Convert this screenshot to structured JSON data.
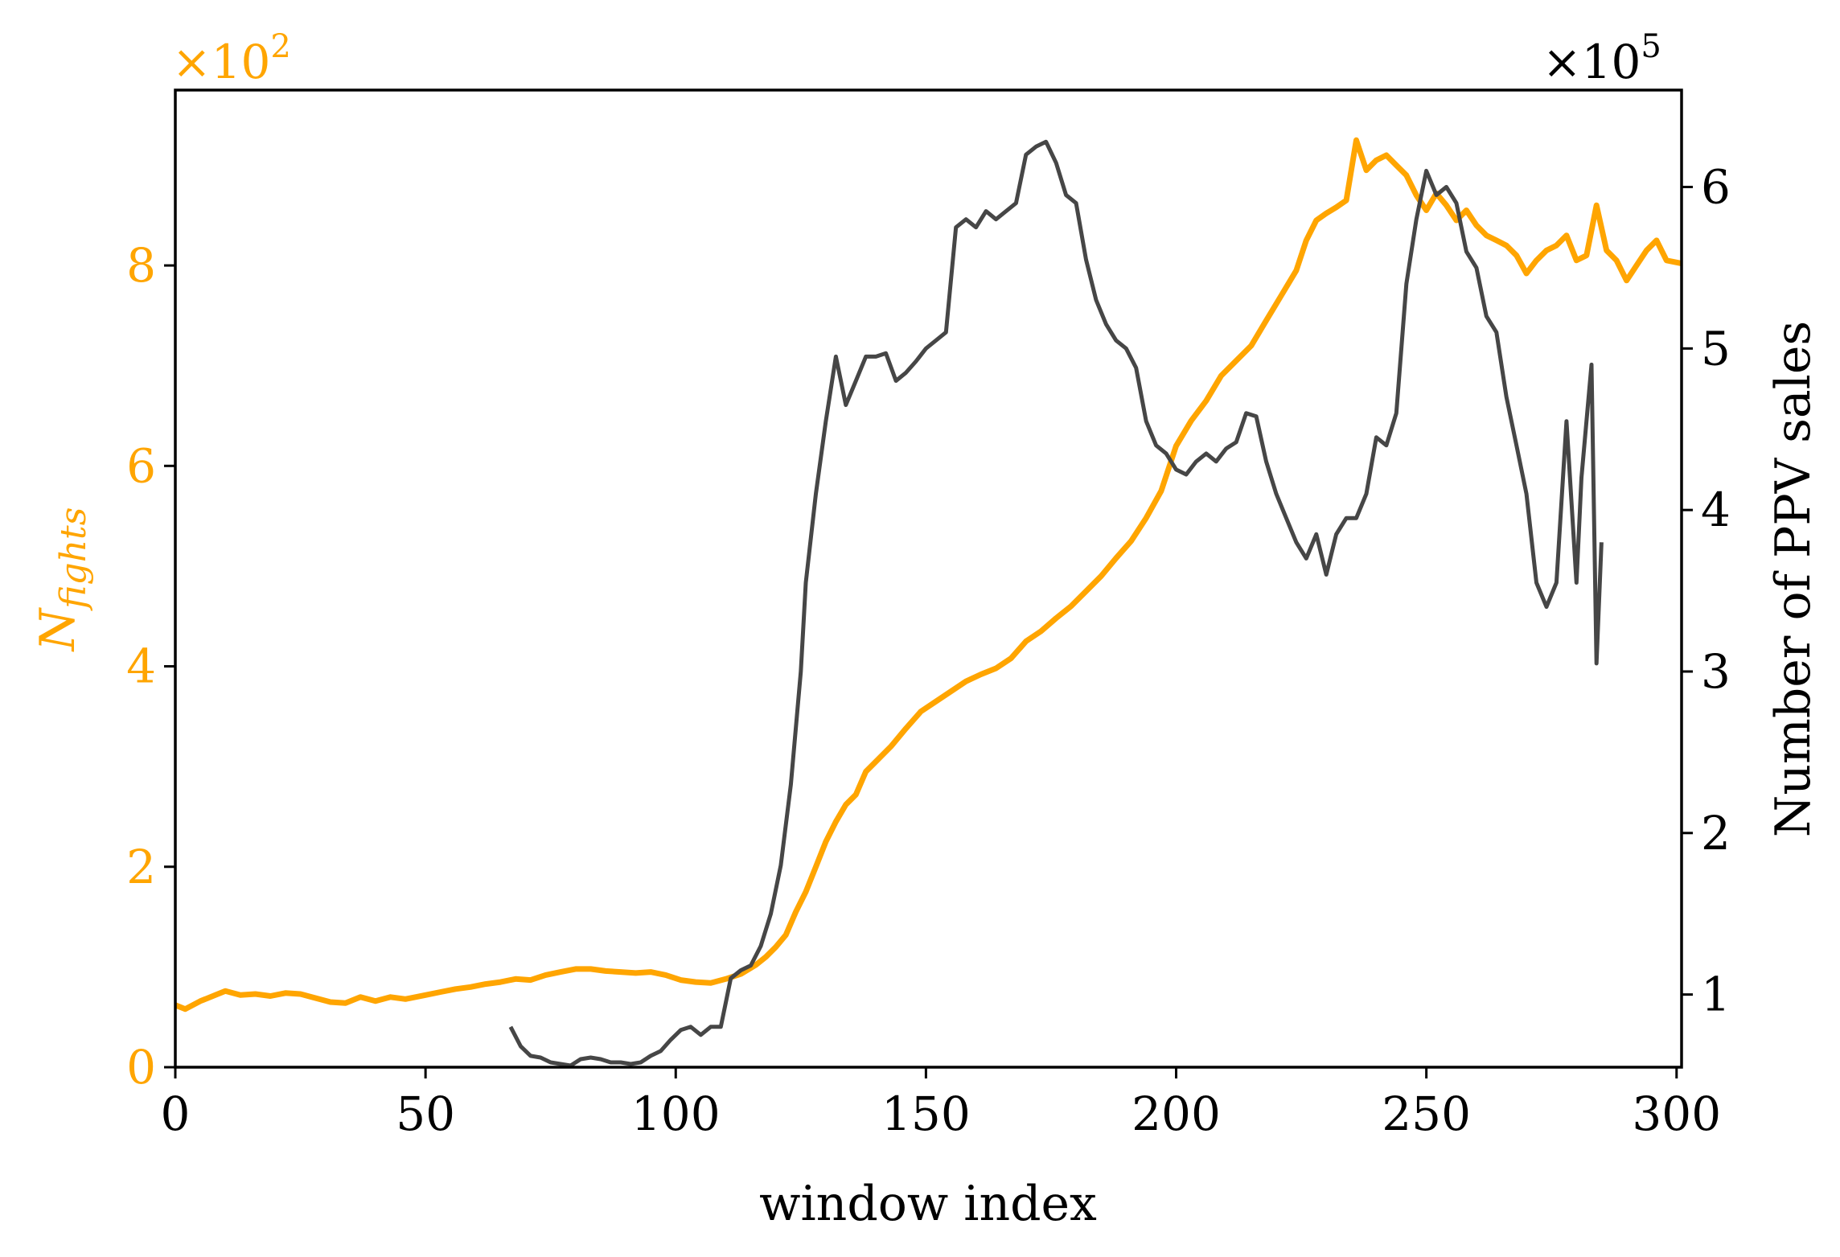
{
  "chart_data": {
    "type": "line",
    "xlabel": "window index",
    "ylabel_left": "N_fights",
    "ylabel_left_main": "N",
    "ylabel_left_sub": "fights",
    "ylabel_right": "Number of PPV sales",
    "multiplier_left": "×10",
    "multiplier_left_exp": "2",
    "multiplier_right": "×10",
    "multiplier_right_exp": "5",
    "xlim": [
      0,
      301
    ],
    "ylim_left": [
      0,
      9.75
    ],
    "ylim_right": [
      0.55,
      6.6
    ],
    "x_ticks": [
      0,
      50,
      100,
      150,
      200,
      250,
      300
    ],
    "y_ticks_left": [
      0,
      2,
      4,
      6,
      8
    ],
    "y_ticks_right": [
      1,
      2,
      3,
      4,
      5,
      6
    ],
    "grid": false,
    "colors": {
      "left_series": "#FFA500",
      "right_series": "#464646",
      "axis": "#000000"
    },
    "series": [
      {
        "axis": "left",
        "x": [
          0,
          2,
          5,
          8,
          10,
          13,
          16,
          19,
          22,
          25,
          28,
          31,
          34,
          37,
          40,
          43,
          46,
          50,
          53,
          56,
          59,
          62,
          65,
          68,
          71,
          74,
          77,
          80,
          83,
          86,
          89,
          92,
          95,
          98,
          101,
          104,
          107,
          110,
          113,
          116,
          118,
          120,
          122,
          124,
          126,
          128,
          130,
          132,
          134,
          136,
          138,
          140,
          143,
          146,
          149,
          152,
          155,
          158,
          161,
          164,
          167,
          170,
          173,
          176,
          179,
          182,
          185,
          188,
          191,
          194,
          197,
          200,
          203,
          206,
          209,
          212,
          215,
          218,
          221,
          224,
          226,
          228,
          230,
          232,
          234,
          236,
          238,
          240,
          242,
          244,
          246,
          248,
          250,
          252,
          254,
          256,
          258,
          260,
          262,
          264,
          266,
          268,
          270,
          272,
          274,
          276,
          278,
          280,
          282,
          284,
          286,
          288,
          290,
          292,
          294,
          296,
          298,
          301
        ],
        "values": [
          0.62,
          0.58,
          0.66,
          0.72,
          0.76,
          0.72,
          0.73,
          0.71,
          0.74,
          0.73,
          0.69,
          0.65,
          0.64,
          0.7,
          0.66,
          0.7,
          0.68,
          0.72,
          0.75,
          0.78,
          0.8,
          0.83,
          0.85,
          0.88,
          0.87,
          0.92,
          0.95,
          0.98,
          0.98,
          0.96,
          0.95,
          0.94,
          0.95,
          0.92,
          0.87,
          0.85,
          0.84,
          0.88,
          0.93,
          1.02,
          1.1,
          1.2,
          1.32,
          1.55,
          1.75,
          2.0,
          2.25,
          2.45,
          2.62,
          2.72,
          2.95,
          3.05,
          3.2,
          3.38,
          3.55,
          3.65,
          3.75,
          3.85,
          3.92,
          3.98,
          4.08,
          4.25,
          4.35,
          4.48,
          4.6,
          4.75,
          4.9,
          5.08,
          5.25,
          5.48,
          5.75,
          6.2,
          6.45,
          6.65,
          6.9,
          7.05,
          7.2,
          7.45,
          7.7,
          7.95,
          8.25,
          8.45,
          8.52,
          8.58,
          8.65,
          9.25,
          8.95,
          9.05,
          9.1,
          9.0,
          8.9,
          8.7,
          8.55,
          8.72,
          8.6,
          8.45,
          8.55,
          8.4,
          8.3,
          8.25,
          8.2,
          8.1,
          7.92,
          8.05,
          8.15,
          8.2,
          8.3,
          8.05,
          8.1,
          8.6,
          8.15,
          8.05,
          7.85,
          8.0,
          8.15,
          8.25,
          8.05,
          8.02
        ]
      },
      {
        "axis": "right",
        "x": [
          67,
          69,
          71,
          73,
          75,
          77,
          79,
          81,
          83,
          85,
          87,
          89,
          91,
          93,
          95,
          97,
          99,
          101,
          103,
          105,
          107,
          109,
          111,
          113,
          115,
          117,
          119,
          121,
          123,
          125,
          126,
          128,
          130,
          132,
          134,
          136,
          138,
          140,
          142,
          144,
          146,
          148,
          150,
          152,
          154,
          156,
          158,
          160,
          162,
          164,
          166,
          168,
          170,
          172,
          174,
          176,
          178,
          180,
          182,
          184,
          186,
          188,
          190,
          192,
          194,
          196,
          198,
          200,
          202,
          204,
          206,
          208,
          210,
          212,
          214,
          216,
          218,
          220,
          222,
          224,
          226,
          228,
          230,
          232,
          234,
          236,
          238,
          240,
          242,
          244,
          246,
          248,
          250,
          252,
          254,
          256,
          258,
          260,
          262,
          264,
          266,
          268,
          270,
          272,
          274,
          276,
          278,
          280,
          281,
          283,
          284,
          285
        ],
        "values": [
          0.8,
          0.68,
          0.62,
          0.61,
          0.58,
          0.57,
          0.56,
          0.6,
          0.61,
          0.6,
          0.58,
          0.58,
          0.57,
          0.58,
          0.62,
          0.65,
          0.72,
          0.78,
          0.8,
          0.75,
          0.8,
          0.8,
          1.1,
          1.15,
          1.18,
          1.3,
          1.5,
          1.8,
          2.3,
          3.0,
          3.55,
          4.1,
          4.55,
          4.95,
          4.65,
          4.8,
          4.95,
          4.95,
          4.97,
          4.8,
          4.85,
          4.92,
          5.0,
          5.05,
          5.1,
          5.75,
          5.8,
          5.75,
          5.85,
          5.8,
          5.85,
          5.9,
          6.2,
          6.25,
          6.28,
          6.15,
          5.95,
          5.9,
          5.55,
          5.3,
          5.15,
          5.05,
          5.0,
          4.88,
          4.55,
          4.4,
          4.35,
          4.25,
          4.22,
          4.3,
          4.35,
          4.3,
          4.38,
          4.42,
          4.6,
          4.58,
          4.3,
          4.1,
          3.95,
          3.8,
          3.7,
          3.85,
          3.6,
          3.85,
          3.95,
          3.95,
          4.1,
          4.45,
          4.4,
          4.6,
          5.4,
          5.8,
          6.1,
          5.95,
          6.0,
          5.9,
          5.6,
          5.5,
          5.2,
          5.1,
          4.7,
          4.4,
          4.1,
          3.55,
          3.4,
          3.55,
          4.55,
          3.55,
          4.2,
          4.9,
          3.05,
          3.8
        ]
      }
    ]
  }
}
